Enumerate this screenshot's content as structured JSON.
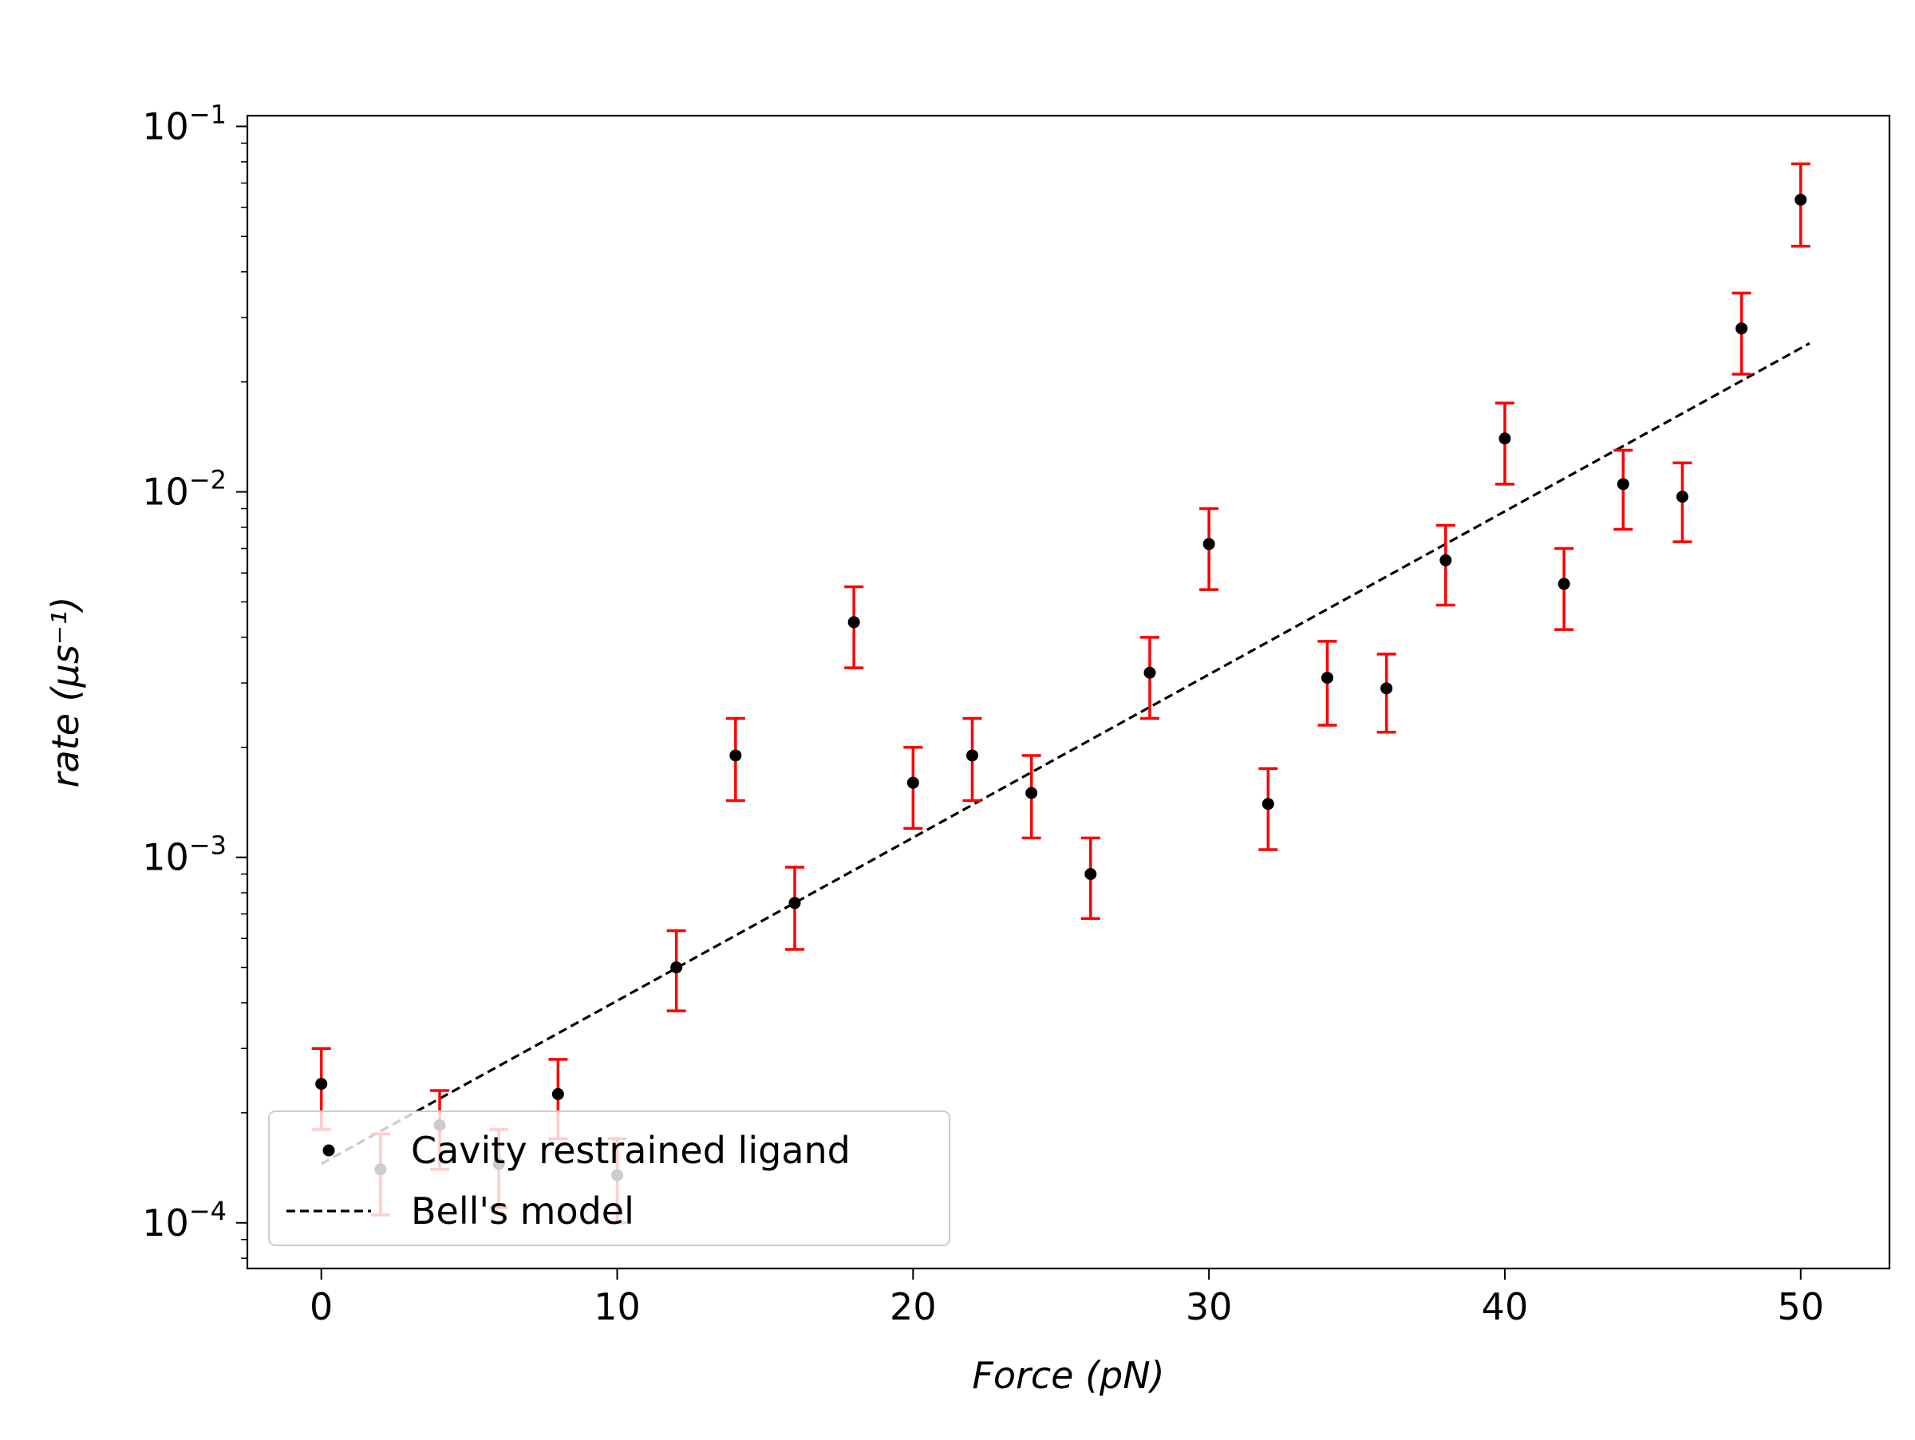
{
  "chart_data": {
    "type": "scatter",
    "title": "",
    "xlabel": "Force (pN)",
    "ylabel": "rate (μs⁻¹)",
    "xlim": [
      -2.5,
      53
    ],
    "ylim": [
      7.5e-05,
      0.107
    ],
    "yscale": "log",
    "xticks": [
      0,
      10,
      20,
      30,
      40,
      50
    ],
    "xtick_labels": [
      "0",
      "10",
      "20",
      "30",
      "40",
      "50"
    ],
    "yticks": [
      0.0001,
      0.001,
      0.01,
      0.1
    ],
    "ytick_labels": [
      {
        "base": "10",
        "exp": "−4"
      },
      {
        "base": "10",
        "exp": "−3"
      },
      {
        "base": "10",
        "exp": "−2"
      },
      {
        "base": "10",
        "exp": "−1"
      }
    ],
    "grid": false,
    "legend_position": "lower-left",
    "series": [
      {
        "name": "Cavity restrained ligand",
        "kind": "points-with-errorbars",
        "marker_color": "#000000",
        "errorbar_color": "#ff0000",
        "x": [
          0,
          2,
          4,
          6,
          8,
          10,
          12,
          14,
          16,
          18,
          20,
          22,
          24,
          26,
          28,
          30,
          32,
          34,
          36,
          38,
          40,
          42,
          44,
          46,
          48,
          50
        ],
        "y": [
          0.00024,
          0.00014,
          0.000185,
          0.000145,
          0.000225,
          0.000135,
          0.0005,
          0.0019,
          0.00075,
          0.0044,
          0.0016,
          0.0019,
          0.0015,
          0.0009,
          0.0032,
          0.0072,
          0.0014,
          0.0031,
          0.0029,
          0.0065,
          0.014,
          0.0056,
          0.0105,
          0.0097,
          0.028,
          0.063
        ],
        "yerr_low": [
          0.00018,
          0.000105,
          0.00014,
          0.00011,
          0.00017,
          0.0001,
          0.00038,
          0.00143,
          0.00056,
          0.0033,
          0.0012,
          0.00143,
          0.00113,
          0.00068,
          0.0024,
          0.0054,
          0.00105,
          0.0023,
          0.0022,
          0.0049,
          0.0105,
          0.0042,
          0.0079,
          0.0073,
          0.021,
          0.047
        ],
        "yerr_high": [
          0.0003,
          0.000175,
          0.00023,
          0.00018,
          0.00028,
          0.00017,
          0.00063,
          0.0024,
          0.00094,
          0.0055,
          0.002,
          0.0024,
          0.0019,
          0.00113,
          0.004,
          0.009,
          0.00175,
          0.0039,
          0.0036,
          0.0081,
          0.0175,
          0.007,
          0.013,
          0.012,
          0.035,
          0.079
        ]
      },
      {
        "name": "Bell's model",
        "kind": "dashed-line",
        "color": "#000000",
        "x": [
          0,
          50.3
        ],
        "y": [
          0.000145,
          0.0255
        ]
      }
    ]
  }
}
